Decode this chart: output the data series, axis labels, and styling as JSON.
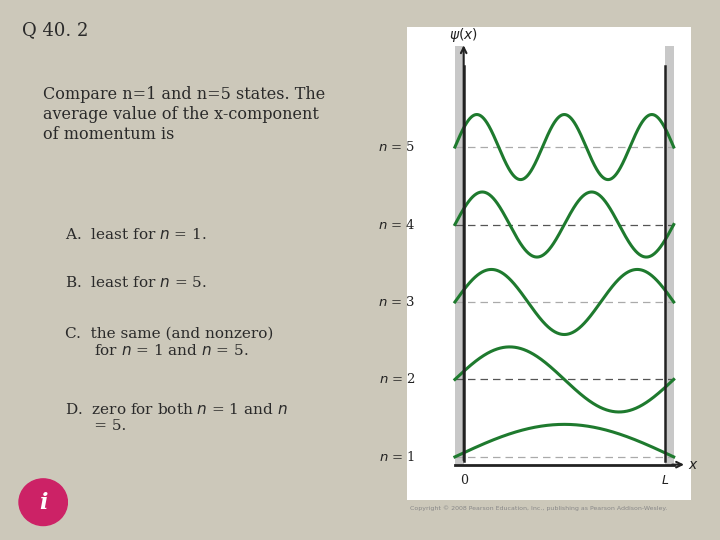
{
  "title": "Q 40. 2",
  "bg_color": "#ccc8ba",
  "question_text": "Compare n=1 and n=5 states. The\naverage value of the x-component\nof momentum is",
  "options": [
    "A.  least for $n$ = 1.",
    "B.  least for $n$ = 5.",
    "C.  the same (and nonzero)\n      for $n$ = 1 and $n$ = 5.",
    "D.  zero for both $n$ = 1 and $n$\n      = 5."
  ],
  "wave_color": "#1e7a2e",
  "dash_color_odd": "#aaaaaa",
  "dash_color_even": "#555555",
  "axis_color": "#222222",
  "plot_bg": "#ffffff",
  "shade_color": "#c8c8c8",
  "n_values": [
    1,
    2,
    3,
    4,
    5
  ],
  "wavefunction_label": "$\\psi(x)$",
  "x_label": "x",
  "copyright_text": "Copyright © 2008 Pearson Education, Inc., publishing as Pearson Addison-Wesley.",
  "info_icon_bg": "#cc2266",
  "info_icon_fg": "#ffffff"
}
